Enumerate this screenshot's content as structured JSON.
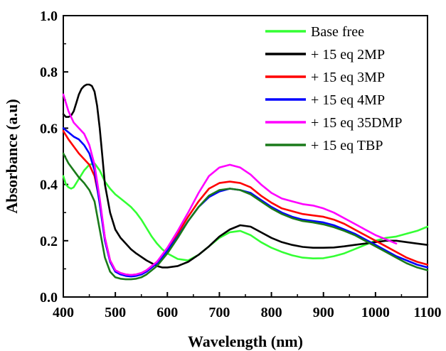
{
  "chart_data": {
    "type": "line",
    "title": "",
    "xlabel": "Wavelength (nm)",
    "ylabel": "Absorbance (a.u)",
    "xlim": [
      400,
      1100
    ],
    "ylim": [
      0.0,
      1.0
    ],
    "xticks": [
      400,
      500,
      600,
      700,
      800,
      900,
      1000,
      1100
    ],
    "yticks": [
      0.0,
      0.2,
      0.4,
      0.6,
      0.8,
      1.0
    ],
    "ytick_labels": [
      "0.0",
      "0.2",
      "0.4",
      "0.6",
      "0.8",
      "1.0"
    ],
    "grid": false,
    "legend_position": "top-right",
    "series": [
      {
        "name": "Base free",
        "color": "#33ff33",
        "x": [
          400,
          405,
          410,
          415,
          420,
          430,
          440,
          450,
          460,
          470,
          480,
          490,
          500,
          510,
          520,
          530,
          540,
          550,
          560,
          570,
          580,
          590,
          600,
          620,
          640,
          660,
          680,
          700,
          720,
          740,
          760,
          780,
          800,
          820,
          840,
          860,
          880,
          900,
          920,
          940,
          960,
          980,
          1000,
          1020,
          1040,
          1060,
          1080,
          1100
        ],
        "y": [
          0.43,
          0.4,
          0.39,
          0.385,
          0.39,
          0.42,
          0.45,
          0.47,
          0.475,
          0.45,
          0.41,
          0.385,
          0.365,
          0.35,
          0.335,
          0.32,
          0.3,
          0.275,
          0.245,
          0.215,
          0.19,
          0.17,
          0.155,
          0.135,
          0.13,
          0.15,
          0.18,
          0.21,
          0.23,
          0.235,
          0.22,
          0.195,
          0.175,
          0.16,
          0.148,
          0.14,
          0.137,
          0.138,
          0.145,
          0.155,
          0.17,
          0.185,
          0.2,
          0.21,
          0.215,
          0.225,
          0.235,
          0.25
        ]
      },
      {
        "name": "+ 15 eq 2MP",
        "color": "#000000",
        "x": [
          400,
          405,
          410,
          415,
          420,
          425,
          430,
          435,
          440,
          445,
          450,
          455,
          460,
          465,
          470,
          475,
          480,
          490,
          500,
          510,
          520,
          530,
          540,
          560,
          580,
          590,
          600,
          620,
          640,
          660,
          680,
          700,
          720,
          740,
          760,
          780,
          800,
          820,
          840,
          860,
          880,
          900,
          920,
          940,
          960,
          980,
          1000,
          1020,
          1040,
          1060,
          1080,
          1100
        ],
        "y": [
          0.65,
          0.64,
          0.64,
          0.645,
          0.66,
          0.69,
          0.72,
          0.74,
          0.75,
          0.755,
          0.755,
          0.75,
          0.73,
          0.68,
          0.6,
          0.5,
          0.4,
          0.3,
          0.24,
          0.21,
          0.19,
          0.17,
          0.155,
          0.13,
          0.11,
          0.105,
          0.105,
          0.11,
          0.125,
          0.15,
          0.18,
          0.215,
          0.24,
          0.255,
          0.25,
          0.23,
          0.21,
          0.195,
          0.185,
          0.178,
          0.175,
          0.175,
          0.176,
          0.18,
          0.185,
          0.19,
          0.195,
          0.2,
          0.2,
          0.195,
          0.19,
          0.185
        ]
      },
      {
        "name": "+ 15 eq 3MP",
        "color": "#ff0000",
        "x": [
          400,
          410,
          420,
          430,
          440,
          450,
          460,
          470,
          480,
          490,
          500,
          510,
          520,
          530,
          540,
          550,
          560,
          580,
          600,
          620,
          640,
          660,
          680,
          700,
          720,
          740,
          760,
          780,
          800,
          820,
          840,
          860,
          880,
          900,
          920,
          940,
          960,
          980,
          1000,
          1020,
          1040,
          1060,
          1080,
          1100
        ],
        "y": [
          0.59,
          0.56,
          0.535,
          0.51,
          0.49,
          0.47,
          0.43,
          0.34,
          0.21,
          0.13,
          0.095,
          0.085,
          0.08,
          0.078,
          0.08,
          0.085,
          0.095,
          0.125,
          0.17,
          0.225,
          0.285,
          0.34,
          0.385,
          0.405,
          0.41,
          0.405,
          0.39,
          0.36,
          0.335,
          0.315,
          0.305,
          0.295,
          0.29,
          0.285,
          0.275,
          0.26,
          0.24,
          0.22,
          0.2,
          0.18,
          0.16,
          0.14,
          0.125,
          0.115
        ]
      },
      {
        "name": "+ 15 eq 4MP",
        "color": "#0000ff",
        "x": [
          400,
          410,
          420,
          430,
          440,
          450,
          460,
          470,
          480,
          490,
          500,
          510,
          520,
          530,
          540,
          550,
          560,
          580,
          600,
          620,
          640,
          660,
          680,
          700,
          720,
          740,
          760,
          780,
          800,
          820,
          840,
          860,
          880,
          900,
          920,
          940,
          960,
          980,
          1000,
          1020,
          1040,
          1060,
          1080,
          1100
        ],
        "y": [
          0.6,
          0.585,
          0.57,
          0.56,
          0.54,
          0.51,
          0.45,
          0.33,
          0.2,
          0.125,
          0.09,
          0.08,
          0.075,
          0.073,
          0.075,
          0.08,
          0.09,
          0.12,
          0.165,
          0.215,
          0.27,
          0.32,
          0.355,
          0.375,
          0.385,
          0.38,
          0.37,
          0.345,
          0.32,
          0.3,
          0.285,
          0.275,
          0.27,
          0.265,
          0.255,
          0.24,
          0.225,
          0.205,
          0.185,
          0.165,
          0.145,
          0.13,
          0.115,
          0.105
        ]
      },
      {
        "name": "+ 15 eq 35DMP",
        "color": "#ff00ff",
        "x": [
          400,
          410,
          420,
          430,
          440,
          450,
          460,
          470,
          480,
          490,
          500,
          510,
          520,
          530,
          540,
          550,
          560,
          580,
          600,
          620,
          640,
          660,
          680,
          700,
          720,
          740,
          760,
          780,
          800,
          820,
          840,
          860,
          880,
          900,
          920,
          940,
          960,
          980,
          1000,
          1020,
          1040
        ],
        "y": [
          0.72,
          0.66,
          0.62,
          0.6,
          0.58,
          0.54,
          0.47,
          0.35,
          0.21,
          0.13,
          0.095,
          0.085,
          0.08,
          0.078,
          0.08,
          0.085,
          0.095,
          0.125,
          0.175,
          0.235,
          0.3,
          0.37,
          0.43,
          0.46,
          0.47,
          0.46,
          0.435,
          0.4,
          0.37,
          0.35,
          0.34,
          0.33,
          0.325,
          0.315,
          0.3,
          0.28,
          0.26,
          0.24,
          0.22,
          0.205,
          0.19
        ]
      },
      {
        "name": "+ 15 eq TBP",
        "color": "#1a7a1a",
        "x": [
          400,
          410,
          420,
          430,
          440,
          450,
          460,
          470,
          480,
          490,
          500,
          510,
          520,
          530,
          540,
          550,
          560,
          580,
          600,
          620,
          640,
          660,
          680,
          700,
          720,
          740,
          760,
          780,
          800,
          820,
          840,
          860,
          880,
          900,
          920,
          940,
          960,
          980,
          1000,
          1020,
          1040,
          1060,
          1080,
          1100
        ],
        "y": [
          0.51,
          0.475,
          0.45,
          0.425,
          0.405,
          0.38,
          0.34,
          0.24,
          0.14,
          0.09,
          0.07,
          0.065,
          0.063,
          0.063,
          0.065,
          0.07,
          0.08,
          0.11,
          0.155,
          0.21,
          0.27,
          0.32,
          0.36,
          0.38,
          0.385,
          0.38,
          0.365,
          0.34,
          0.315,
          0.295,
          0.28,
          0.27,
          0.265,
          0.258,
          0.248,
          0.235,
          0.22,
          0.2,
          0.18,
          0.16,
          0.14,
          0.12,
          0.105,
          0.095
        ]
      }
    ]
  }
}
